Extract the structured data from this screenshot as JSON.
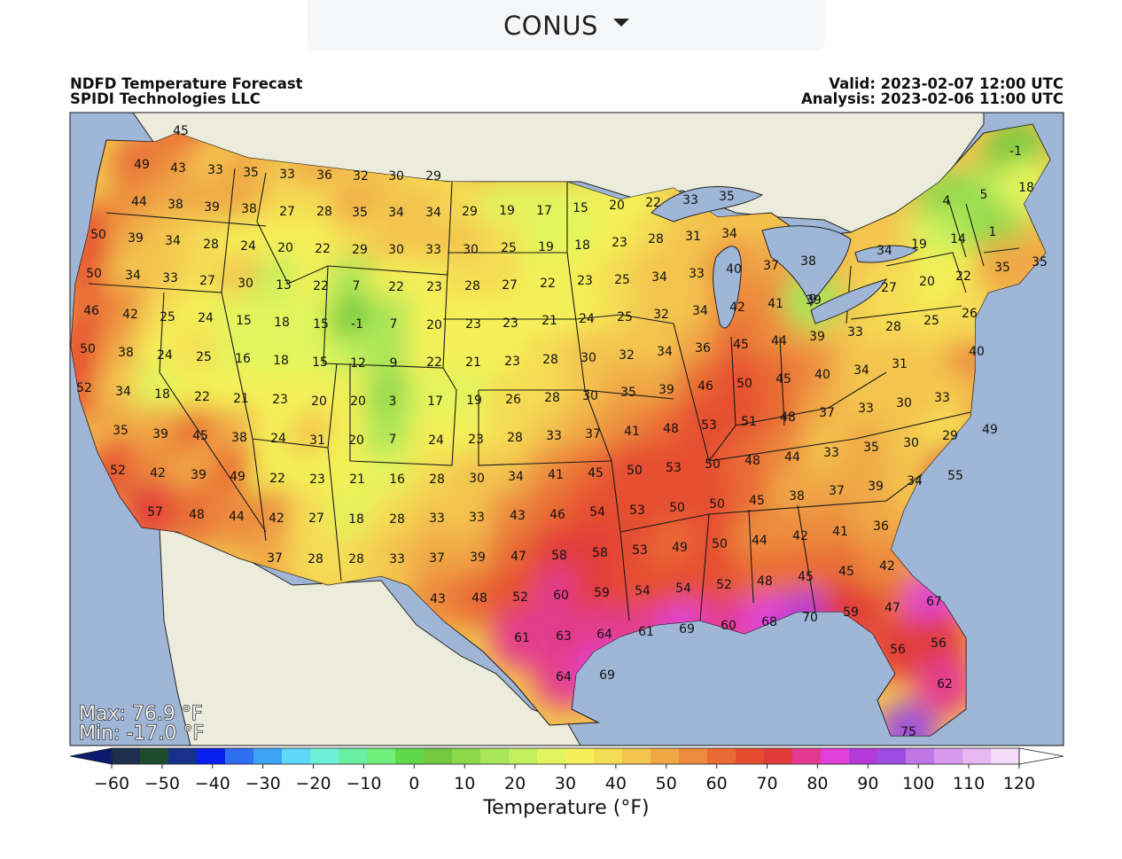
{
  "region_selector": {
    "label": "CONUS",
    "icon": "caret-down-icon"
  },
  "header": {
    "title": "NDFD Temperature Forecast",
    "org": "SPIDI Technologies LLC",
    "valid": "Valid: 2023-02-07 12:00 UTC",
    "analysis": "Analysis: 2023-02-06 11:00 UTC"
  },
  "stats": {
    "max": "Max: 76.9 °F",
    "min": "Min: -17.0 °F"
  },
  "colorbar": {
    "label": "Temperature (°F)",
    "ticks": [
      "−60",
      "−50",
      "−40",
      "−30",
      "−20",
      "−10",
      "0",
      "10",
      "20",
      "30",
      "40",
      "50",
      "60",
      "70",
      "80",
      "90",
      "100",
      "110",
      "120"
    ],
    "min": -60,
    "max": 120,
    "step": 5,
    "colors": [
      "#1d2f4d",
      "#1e4d2e",
      "#17308a",
      "#0b1ef0",
      "#2f6df2",
      "#3ea3f5",
      "#5fd8f7",
      "#6cf0d8",
      "#6af0a5",
      "#6ef07a",
      "#5fd94a",
      "#72c93f",
      "#8fd94d",
      "#a8e65a",
      "#c4ef5e",
      "#e1f55e",
      "#f4f05a",
      "#f5dc55",
      "#f3c44f",
      "#f0a847",
      "#ec8a3e",
      "#e96a36",
      "#e64d30",
      "#e23a3a",
      "#e33a8f",
      "#e040d8",
      "#b43ad9",
      "#9a4de0",
      "#c077e6",
      "#d898ec",
      "#e7b8f2",
      "#f3dcf8"
    ],
    "low_color": "#0a1a6e",
    "high_color": "#ffffff"
  },
  "map": {
    "ocean_color": "#9fb6d6",
    "land_color": "#ececdc",
    "values": [
      {
        "v": "45"
      },
      {
        "v": "49"
      },
      {
        "v": "43"
      },
      {
        "v": "33"
      },
      {
        "v": "35"
      },
      {
        "v": "33"
      },
      {
        "v": "36"
      },
      {
        "v": "32"
      },
      {
        "v": "30"
      },
      {
        "v": "29"
      },
      {
        "v": "44"
      },
      {
        "v": "38"
      },
      {
        "v": "39"
      },
      {
        "v": "38"
      },
      {
        "v": "27"
      },
      {
        "v": "28"
      },
      {
        "v": "35"
      },
      {
        "v": "34"
      },
      {
        "v": "34"
      },
      {
        "v": "29"
      },
      {
        "v": "19"
      },
      {
        "v": "17"
      },
      {
        "v": "15"
      },
      {
        "v": "20"
      },
      {
        "v": "22"
      },
      {
        "v": "33"
      },
      {
        "v": "35"
      },
      {
        "v": "50"
      },
      {
        "v": "39"
      },
      {
        "v": "34"
      },
      {
        "v": "28"
      },
      {
        "v": "24"
      },
      {
        "v": "20"
      },
      {
        "v": "22"
      },
      {
        "v": "29"
      },
      {
        "v": "30"
      },
      {
        "v": "33"
      },
      {
        "v": "30"
      },
      {
        "v": "25"
      },
      {
        "v": "19"
      },
      {
        "v": "18"
      },
      {
        "v": "23"
      },
      {
        "v": "28"
      },
      {
        "v": "31"
      },
      {
        "v": "34"
      },
      {
        "v": "50"
      },
      {
        "v": "34"
      },
      {
        "v": "33"
      },
      {
        "v": "27"
      },
      {
        "v": "30"
      },
      {
        "v": "13"
      },
      {
        "v": "22"
      },
      {
        "v": "7"
      },
      {
        "v": "22"
      },
      {
        "v": "23"
      },
      {
        "v": "28"
      },
      {
        "v": "27"
      },
      {
        "v": "22"
      },
      {
        "v": "23"
      },
      {
        "v": "25"
      },
      {
        "v": "34"
      },
      {
        "v": "33"
      },
      {
        "v": "40"
      },
      {
        "v": "37"
      },
      {
        "v": "38"
      },
      {
        "v": "46"
      },
      {
        "v": "42"
      },
      {
        "v": "25"
      },
      {
        "v": "24"
      },
      {
        "v": "15"
      },
      {
        "v": "18"
      },
      {
        "v": "15"
      },
      {
        "v": "-1"
      },
      {
        "v": "7"
      },
      {
        "v": "20"
      },
      {
        "v": "23"
      },
      {
        "v": "23"
      },
      {
        "v": "21"
      },
      {
        "v": "24"
      },
      {
        "v": "25"
      },
      {
        "v": "32"
      },
      {
        "v": "34"
      },
      {
        "v": "42"
      },
      {
        "v": "41"
      },
      {
        "v": "39"
      },
      {
        "v": "50"
      },
      {
        "v": "38"
      },
      {
        "v": "24"
      },
      {
        "v": "25"
      },
      {
        "v": "16"
      },
      {
        "v": "18"
      },
      {
        "v": "15"
      },
      {
        "v": "12"
      },
      {
        "v": "9"
      },
      {
        "v": "22"
      },
      {
        "v": "21"
      },
      {
        "v": "23"
      },
      {
        "v": "28"
      },
      {
        "v": "30"
      },
      {
        "v": "32"
      },
      {
        "v": "34"
      },
      {
        "v": "36"
      },
      {
        "v": "45"
      },
      {
        "v": "44"
      },
      {
        "v": "39"
      },
      {
        "v": "33"
      },
      {
        "v": "28"
      },
      {
        "v": "25"
      },
      {
        "v": "52"
      },
      {
        "v": "34"
      },
      {
        "v": "18"
      },
      {
        "v": "22"
      },
      {
        "v": "21"
      },
      {
        "v": "23"
      },
      {
        "v": "20"
      },
      {
        "v": "20"
      },
      {
        "v": "3"
      },
      {
        "v": "17"
      },
      {
        "v": "19"
      },
      {
        "v": "26"
      },
      {
        "v": "28"
      },
      {
        "v": "30"
      },
      {
        "v": "35"
      },
      {
        "v": "39"
      },
      {
        "v": "46"
      },
      {
        "v": "50"
      },
      {
        "v": "45"
      },
      {
        "v": "40"
      },
      {
        "v": "34"
      },
      {
        "v": "31"
      },
      {
        "v": "40"
      },
      {
        "v": "35"
      },
      {
        "v": "39"
      },
      {
        "v": "45"
      },
      {
        "v": "38"
      },
      {
        "v": "24"
      },
      {
        "v": "31"
      },
      {
        "v": "20"
      },
      {
        "v": "7"
      },
      {
        "v": "24"
      },
      {
        "v": "23"
      },
      {
        "v": "28"
      },
      {
        "v": "33"
      },
      {
        "v": "37"
      },
      {
        "v": "41"
      },
      {
        "v": "48"
      },
      {
        "v": "53"
      },
      {
        "v": "51"
      },
      {
        "v": "48"
      },
      {
        "v": "37"
      },
      {
        "v": "33"
      },
      {
        "v": "30"
      },
      {
        "v": "33"
      },
      {
        "v": "49"
      },
      {
        "v": "52"
      },
      {
        "v": "42"
      },
      {
        "v": "39"
      },
      {
        "v": "49"
      },
      {
        "v": "22"
      },
      {
        "v": "23"
      },
      {
        "v": "21"
      },
      {
        "v": "16"
      },
      {
        "v": "28"
      },
      {
        "v": "30"
      },
      {
        "v": "34"
      },
      {
        "v": "41"
      },
      {
        "v": "45"
      },
      {
        "v": "50"
      },
      {
        "v": "53"
      },
      {
        "v": "50"
      },
      {
        "v": "48"
      },
      {
        "v": "44"
      },
      {
        "v": "33"
      },
      {
        "v": "35"
      },
      {
        "v": "30"
      },
      {
        "v": "29"
      },
      {
        "v": "57"
      },
      {
        "v": "48"
      },
      {
        "v": "44"
      },
      {
        "v": "42"
      },
      {
        "v": "27"
      },
      {
        "v": "18"
      },
      {
        "v": "28"
      },
      {
        "v": "33"
      },
      {
        "v": "33"
      },
      {
        "v": "43"
      },
      {
        "v": "46"
      },
      {
        "v": "54"
      },
      {
        "v": "53"
      },
      {
        "v": "50"
      },
      {
        "v": "50"
      },
      {
        "v": "45"
      },
      {
        "v": "38"
      },
      {
        "v": "37"
      },
      {
        "v": "39"
      },
      {
        "v": "34"
      },
      {
        "v": "55"
      },
      {
        "v": "37"
      },
      {
        "v": "28"
      },
      {
        "v": "28"
      },
      {
        "v": "33"
      },
      {
        "v": "37"
      },
      {
        "v": "39"
      },
      {
        "v": "47"
      },
      {
        "v": "58"
      },
      {
        "v": "58"
      },
      {
        "v": "53"
      },
      {
        "v": "49"
      },
      {
        "v": "50"
      },
      {
        "v": "44"
      },
      {
        "v": "42"
      },
      {
        "v": "41"
      },
      {
        "v": "36"
      },
      {
        "v": "43"
      },
      {
        "v": "48"
      },
      {
        "v": "52"
      },
      {
        "v": "60"
      },
      {
        "v": "59"
      },
      {
        "v": "54"
      },
      {
        "v": "54"
      },
      {
        "v": "52"
      },
      {
        "v": "48"
      },
      {
        "v": "45"
      },
      {
        "v": "45"
      },
      {
        "v": "42"
      },
      {
        "v": "47"
      },
      {
        "v": "67"
      },
      {
        "v": "61"
      },
      {
        "v": "63"
      },
      {
        "v": "64"
      },
      {
        "v": "61"
      },
      {
        "v": "69"
      },
      {
        "v": "60"
      },
      {
        "v": "68"
      },
      {
        "v": "70"
      },
      {
        "v": "59"
      },
      {
        "v": "56"
      },
      {
        "v": "56"
      },
      {
        "v": "64"
      },
      {
        "v": "69"
      },
      {
        "v": "62"
      },
      {
        "v": "75"
      },
      {
        "v": "-1"
      },
      {
        "v": "5"
      },
      {
        "v": "18"
      },
      {
        "v": "4"
      },
      {
        "v": "19"
      },
      {
        "v": "14"
      },
      {
        "v": "1"
      },
      {
        "v": "34"
      },
      {
        "v": "20"
      },
      {
        "v": "27"
      },
      {
        "v": "22"
      },
      {
        "v": "35"
      },
      {
        "v": "35"
      },
      {
        "v": "26"
      },
      {
        "v": "9"
      }
    ]
  }
}
